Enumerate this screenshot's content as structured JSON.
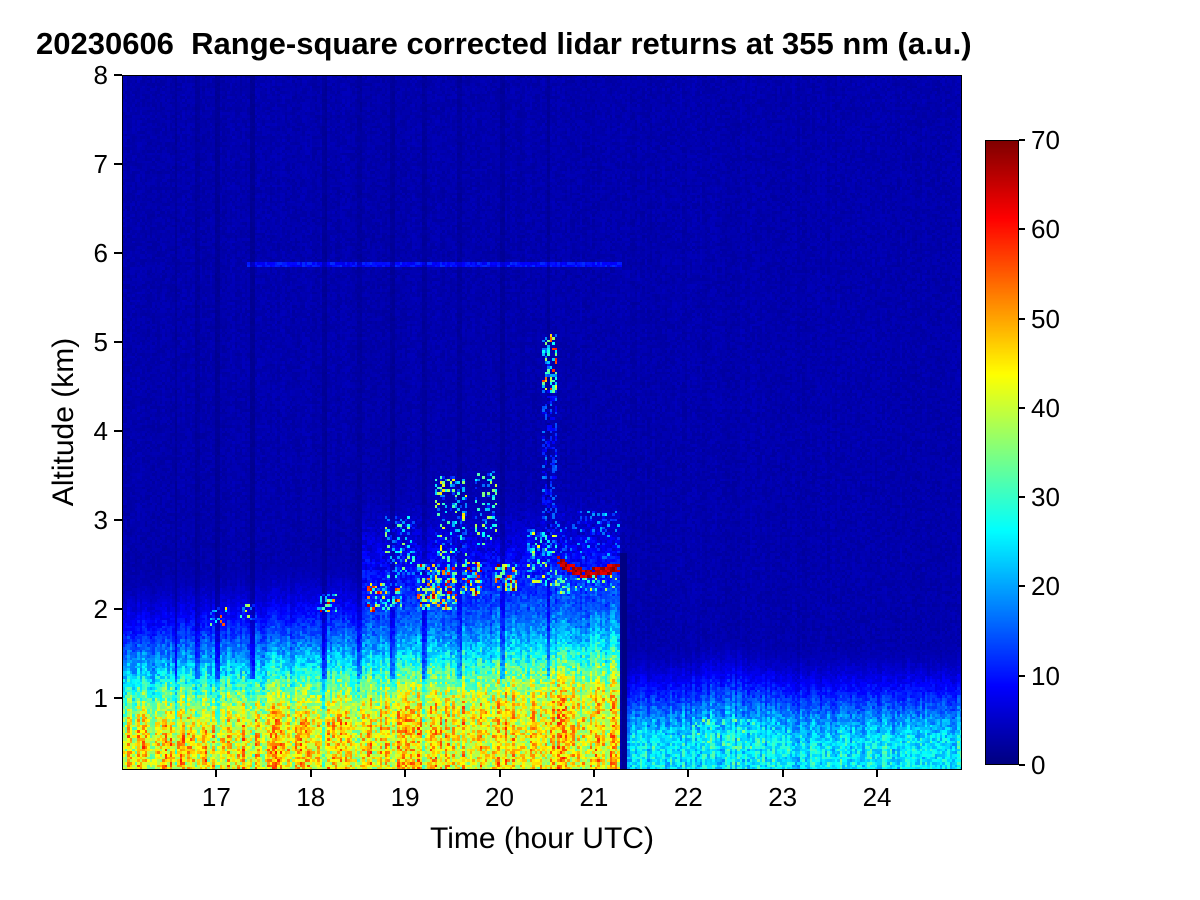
{
  "chart_data": {
    "type": "heatmap",
    "title": "20230606  Range-square corrected lidar returns at 355 nm (a.u.)",
    "date": "20230606",
    "wavelength_nm": 355,
    "units": "a.u.",
    "xlabel": "Time (hour UTC)",
    "ylabel": "Altitude (km)",
    "x_range": [
      16.0,
      24.9
    ],
    "y_range": [
      0.19,
      8.0
    ],
    "x_ticks": [
      17,
      18,
      19,
      20,
      21,
      22,
      23,
      24
    ],
    "y_ticks": [
      1,
      2,
      3,
      4,
      5,
      6,
      7,
      8
    ],
    "colormap": "jet",
    "colorbar": {
      "min": 0,
      "max": 70,
      "ticks": [
        0,
        10,
        20,
        30,
        40,
        50,
        60,
        70
      ]
    },
    "grid_hint": {
      "nt": 336,
      "nz": 260
    },
    "cutoff_time": 21.3,
    "background": {
      "base": 2.2,
      "noise": 1.8
    },
    "boundary_layer": {
      "day": {
        "surface": 44,
        "h0_base": 0.5,
        "h0_slope": 0.075,
        "decay": 0.95,
        "t_end": 21.3
      },
      "night": {
        "surface": 25,
        "h0": 0.42,
        "decay": 0.52,
        "t_start": 21.3
      }
    },
    "haze": {
      "t0": 18.55,
      "t1": 21.28,
      "z_center": 2.4,
      "z_sigma": 0.55,
      "amp": 5
    },
    "artifact_line": {
      "z0": 5.85,
      "z1": 5.9,
      "t0": 17.33,
      "t1": 21.3,
      "v0": 7,
      "v1": 12
    },
    "speckle_features": [
      {
        "t0": 16.9,
        "t1": 17.1,
        "z0": 1.8,
        "z1": 2.02,
        "density": 0.3,
        "v0": 16,
        "v1": 58
      },
      {
        "t0": 17.24,
        "t1": 17.42,
        "z0": 1.86,
        "z1": 2.06,
        "density": 0.26,
        "v0": 14,
        "v1": 42
      },
      {
        "t0": 18.04,
        "t1": 18.28,
        "z0": 1.95,
        "z1": 2.18,
        "density": 0.42,
        "v0": 16,
        "v1": 66
      },
      {
        "t0": 18.6,
        "t1": 18.96,
        "z0": 1.95,
        "z1": 2.3,
        "density": 0.45,
        "v0": 16,
        "v1": 68
      },
      {
        "t0": 18.78,
        "t1": 19.1,
        "z0": 2.35,
        "z1": 3.05,
        "density": 0.3,
        "v0": 10,
        "v1": 40
      },
      {
        "t0": 19.12,
        "t1": 19.55,
        "z0": 2.0,
        "z1": 2.5,
        "density": 0.5,
        "v0": 14,
        "v1": 70
      },
      {
        "t0": 19.3,
        "t1": 19.66,
        "z0": 2.5,
        "z1": 3.48,
        "density": 0.3,
        "v0": 10,
        "v1": 46
      },
      {
        "t0": 19.58,
        "t1": 19.82,
        "z0": 2.15,
        "z1": 2.52,
        "density": 0.55,
        "v0": 18,
        "v1": 70
      },
      {
        "t0": 19.74,
        "t1": 19.98,
        "z0": 2.7,
        "z1": 3.55,
        "density": 0.26,
        "v0": 10,
        "v1": 42
      },
      {
        "t0": 19.94,
        "t1": 20.18,
        "z0": 2.2,
        "z1": 2.5,
        "density": 0.6,
        "v0": 22,
        "v1": 70
      },
      {
        "t0": 20.3,
        "t1": 20.6,
        "z0": 2.25,
        "z1": 2.9,
        "density": 0.35,
        "v0": 10,
        "v1": 44
      },
      {
        "t0": 20.44,
        "t1": 20.6,
        "z0": 2.6,
        "z1": 4.45,
        "density": 0.4,
        "v0": 7,
        "v1": 18
      },
      {
        "t0": 20.44,
        "t1": 20.62,
        "z0": 4.4,
        "z1": 5.08,
        "density": 0.45,
        "v0": 16,
        "v1": 60
      },
      {
        "t0": 20.6,
        "t1": 21.26,
        "z0": 2.18,
        "z1": 2.38,
        "density": 0.3,
        "v0": 12,
        "v1": 42
      },
      {
        "t0": 20.6,
        "t1": 21.26,
        "z0": 2.56,
        "z1": 3.1,
        "density": 0.22,
        "v0": 7,
        "v1": 22
      },
      {
        "t0": 21.0,
        "t1": 21.15,
        "z0": 2.85,
        "z1": 3.1,
        "density": 0.18,
        "v0": 12,
        "v1": 30
      },
      {
        "t0": 22.05,
        "t1": 22.75,
        "z0": 0.42,
        "z1": 0.75,
        "density": 0.25,
        "v0": 24,
        "v1": 36
      }
    ],
    "cloud_base_line": {
      "t0": 20.6,
      "t1": 21.27,
      "halfwidth": 0.05,
      "v0": 62,
      "v1": 70,
      "density": 0.92,
      "points": [
        [
          20.6,
          2.57
        ],
        [
          20.72,
          2.47
        ],
        [
          20.88,
          2.4
        ],
        [
          21.05,
          2.42
        ],
        [
          21.27,
          2.46
        ]
      ]
    },
    "dark_stripes": [
      {
        "t": 16.57,
        "w": 0.025,
        "depth": 0.6
      },
      {
        "t": 16.8,
        "w": 0.02,
        "depth": 0.65
      },
      {
        "t": 17.0,
        "w": 0.025,
        "depth": 0.5
      },
      {
        "t": 17.37,
        "w": 0.03,
        "depth": 0.45
      },
      {
        "t": 18.14,
        "w": 0.025,
        "depth": 0.55
      },
      {
        "t": 18.52,
        "w": 0.02,
        "depth": 0.65
      },
      {
        "t": 18.87,
        "w": 0.025,
        "depth": 0.55
      },
      {
        "t": 19.21,
        "w": 0.02,
        "depth": 0.6
      },
      {
        "t": 19.58,
        "w": 0.02,
        "depth": 0.65
      },
      {
        "t": 20.03,
        "w": 0.02,
        "depth": 0.6
      },
      {
        "t": 20.52,
        "w": 0.02,
        "depth": 0.6
      },
      {
        "t": 21.305,
        "w": 0.038,
        "depth": 0.06,
        "zmax": 2.62
      }
    ]
  }
}
